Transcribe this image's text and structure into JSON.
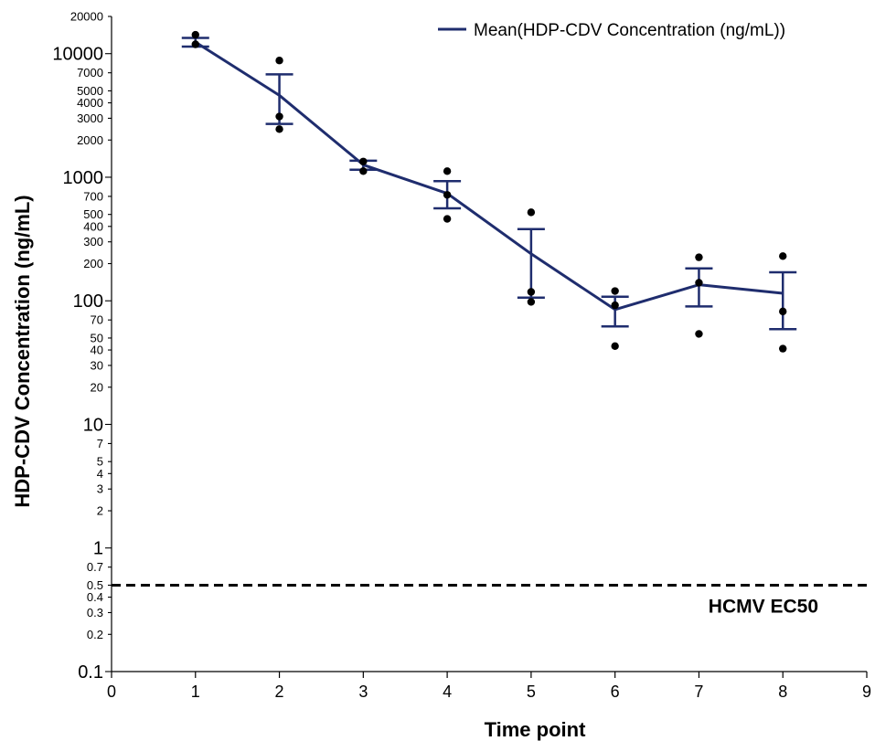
{
  "chart_data": {
    "type": "line",
    "xlabel": "Time point",
    "ylabel": "HDP-CDV Concentration (ng/mL)",
    "xlim": [
      0,
      9
    ],
    "ylim": [
      0.1,
      20000
    ],
    "yscale": "log",
    "x_ticks": [
      "0",
      "1",
      "2",
      "3",
      "4",
      "5",
      "6",
      "7",
      "8",
      "9"
    ],
    "y_ticks": [
      {
        "value": 20000,
        "label": "20000",
        "major": false
      },
      {
        "value": 10000,
        "label": "10000",
        "major": true
      },
      {
        "value": 7000,
        "label": "7000",
        "major": false
      },
      {
        "value": 5000,
        "label": "5000",
        "major": false
      },
      {
        "value": 4000,
        "label": "4000",
        "major": false
      },
      {
        "value": 3000,
        "label": "3000",
        "major": false
      },
      {
        "value": 2000,
        "label": "2000",
        "major": false
      },
      {
        "value": 1000,
        "label": "1000",
        "major": true
      },
      {
        "value": 700,
        "label": "700",
        "major": false
      },
      {
        "value": 500,
        "label": "500",
        "major": false
      },
      {
        "value": 400,
        "label": "400",
        "major": false
      },
      {
        "value": 300,
        "label": "300",
        "major": false
      },
      {
        "value": 200,
        "label": "200",
        "major": false
      },
      {
        "value": 100,
        "label": "100",
        "major": true
      },
      {
        "value": 70,
        "label": "70",
        "major": false
      },
      {
        "value": 50,
        "label": "50",
        "major": false
      },
      {
        "value": 40,
        "label": "40",
        "major": false
      },
      {
        "value": 30,
        "label": "30",
        "major": false
      },
      {
        "value": 20,
        "label": "20",
        "major": false
      },
      {
        "value": 10,
        "label": "10",
        "major": true
      },
      {
        "value": 7,
        "label": "7",
        "major": false
      },
      {
        "value": 5,
        "label": "5",
        "major": false
      },
      {
        "value": 4,
        "label": "4",
        "major": false
      },
      {
        "value": 3,
        "label": "3",
        "major": false
      },
      {
        "value": 2,
        "label": "2",
        "major": false
      },
      {
        "value": 1,
        "label": "1",
        "major": true
      },
      {
        "value": 0.7,
        "label": "0.7",
        "major": false
      },
      {
        "value": 0.5,
        "label": "0.5",
        "major": false
      },
      {
        "value": 0.4,
        "label": "0.4",
        "major": false
      },
      {
        "value": 0.3,
        "label": "0.3",
        "major": false
      },
      {
        "value": 0.2,
        "label": "0.2",
        "major": false
      },
      {
        "value": 0.1,
        "label": "0.1",
        "major": true
      }
    ],
    "legend": {
      "position": "top-right",
      "label": "Mean(HDP-CDV Concentration (ng/mL))"
    },
    "grid": false,
    "series": [
      {
        "name": "Mean(HDP-CDV Concentration (ng/mL))",
        "color": "#1f2d6e",
        "x": [
          1,
          2,
          3,
          4,
          5,
          6,
          7,
          8
        ],
        "mean": [
          12400,
          4600,
          1260,
          740,
          240,
          85,
          135,
          115
        ],
        "error_upper": [
          13400,
          6800,
          1360,
          930,
          380,
          108,
          183,
          170
        ],
        "error_lower": [
          11400,
          2700,
          1150,
          560,
          106,
          62,
          90,
          59
        ]
      }
    ],
    "individual_points": {
      "color": "#000000",
      "points": [
        {
          "x": 1,
          "y": 14200
        },
        {
          "x": 1,
          "y": 11900
        },
        {
          "x": 2,
          "y": 8800
        },
        {
          "x": 2,
          "y": 3100
        },
        {
          "x": 2,
          "y": 2450
        },
        {
          "x": 3,
          "y": 1340
        },
        {
          "x": 3,
          "y": 1120
        },
        {
          "x": 4,
          "y": 1120
        },
        {
          "x": 4,
          "y": 720
        },
        {
          "x": 4,
          "y": 460
        },
        {
          "x": 5,
          "y": 520
        },
        {
          "x": 5,
          "y": 118
        },
        {
          "x": 5,
          "y": 98
        },
        {
          "x": 6,
          "y": 120
        },
        {
          "x": 6,
          "y": 92
        },
        {
          "x": 6,
          "y": 43
        },
        {
          "x": 7,
          "y": 225
        },
        {
          "x": 7,
          "y": 140
        },
        {
          "x": 7,
          "y": 54
        },
        {
          "x": 8,
          "y": 230
        },
        {
          "x": 8,
          "y": 82
        },
        {
          "x": 8,
          "y": 41
        }
      ]
    },
    "reference_line": {
      "y": 0.5,
      "style": "dashed",
      "color": "#000000",
      "label": "HCMV EC50"
    }
  }
}
